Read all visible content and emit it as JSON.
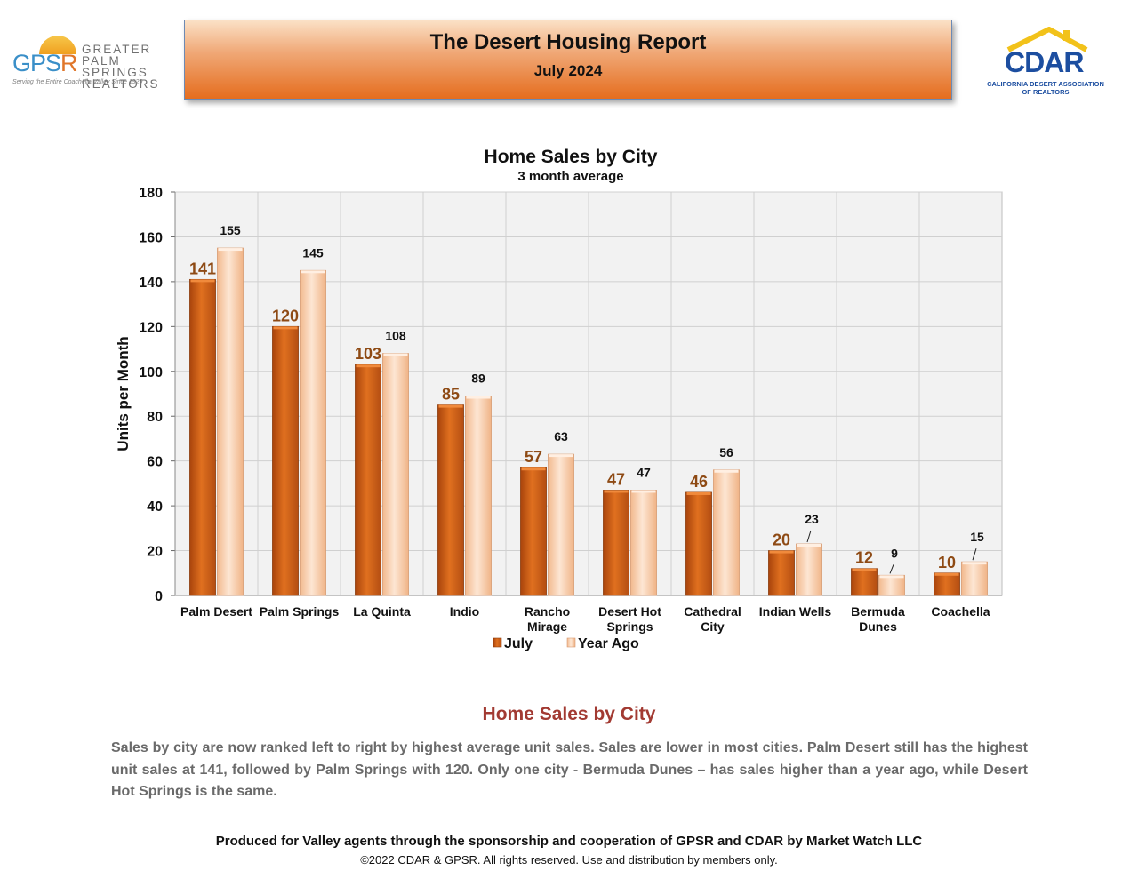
{
  "header": {
    "title": "The Desert Housing Report",
    "subtitle": "July 2024"
  },
  "logos": {
    "left": {
      "mark_main": "GPS",
      "mark_accent": "R",
      "name_line1": "GREATER",
      "name_line2": "PALM SPRINGS",
      "name_line3": "REALTORS",
      "tagline": "Serving the Entire Coachella Valley Since 1929"
    },
    "right": {
      "mark": "CDAR",
      "name_line1": "CALIFORNIA DESERT ASSOCIATION",
      "name_line2": "OF REALTORS"
    }
  },
  "colors": {
    "july": "#d2601a",
    "year_ago": "#fcd3b4",
    "july_label": "#8e4a14",
    "grid": "#d0d0d0",
    "plot_bg": "#f2f2f2"
  },
  "chart_data": {
    "type": "bar",
    "title": "Home Sales by City",
    "subtitle": "3 month average",
    "xlabel": "",
    "ylabel": "Units per Month",
    "ylim": [
      0,
      180
    ],
    "yticks": [
      0,
      20,
      40,
      60,
      80,
      100,
      120,
      140,
      160,
      180
    ],
    "grid": true,
    "legend_position": "bottom",
    "categories": [
      [
        "Palm Desert"
      ],
      [
        "Palm Springs"
      ],
      [
        "La Quinta"
      ],
      [
        "Indio"
      ],
      [
        "Rancho",
        "Mirage"
      ],
      [
        "Desert Hot",
        "Springs"
      ],
      [
        "Cathedral",
        "City"
      ],
      [
        "Indian Wells"
      ],
      [
        "Bermuda",
        "Dunes"
      ],
      [
        "Coachella"
      ]
    ],
    "series": [
      {
        "name": "July",
        "values": [
          141,
          120,
          103,
          85,
          57,
          47,
          46,
          20,
          12,
          10
        ]
      },
      {
        "name": "Year Ago",
        "values": [
          155,
          145,
          108,
          89,
          63,
          47,
          56,
          23,
          9,
          15
        ]
      }
    ]
  },
  "commentary": {
    "heading": "Home Sales by City",
    "body": "Sales by city are now ranked left to right by highest average unit sales. Sales are lower in most cities. Palm Desert still has the highest unit sales at 141, followed by Palm Springs with 120. Only one city - Bermuda Dunes – has sales higher than a year ago, while Desert Hot Springs is the same."
  },
  "footer": {
    "line1": "Produced for Valley agents through the sponsorship and cooperation of GPSR and CDAR by Market Watch LLC",
    "line2": "©2022 CDAR & GPSR.  All rights reserved.  Use and distribution by members only."
  }
}
